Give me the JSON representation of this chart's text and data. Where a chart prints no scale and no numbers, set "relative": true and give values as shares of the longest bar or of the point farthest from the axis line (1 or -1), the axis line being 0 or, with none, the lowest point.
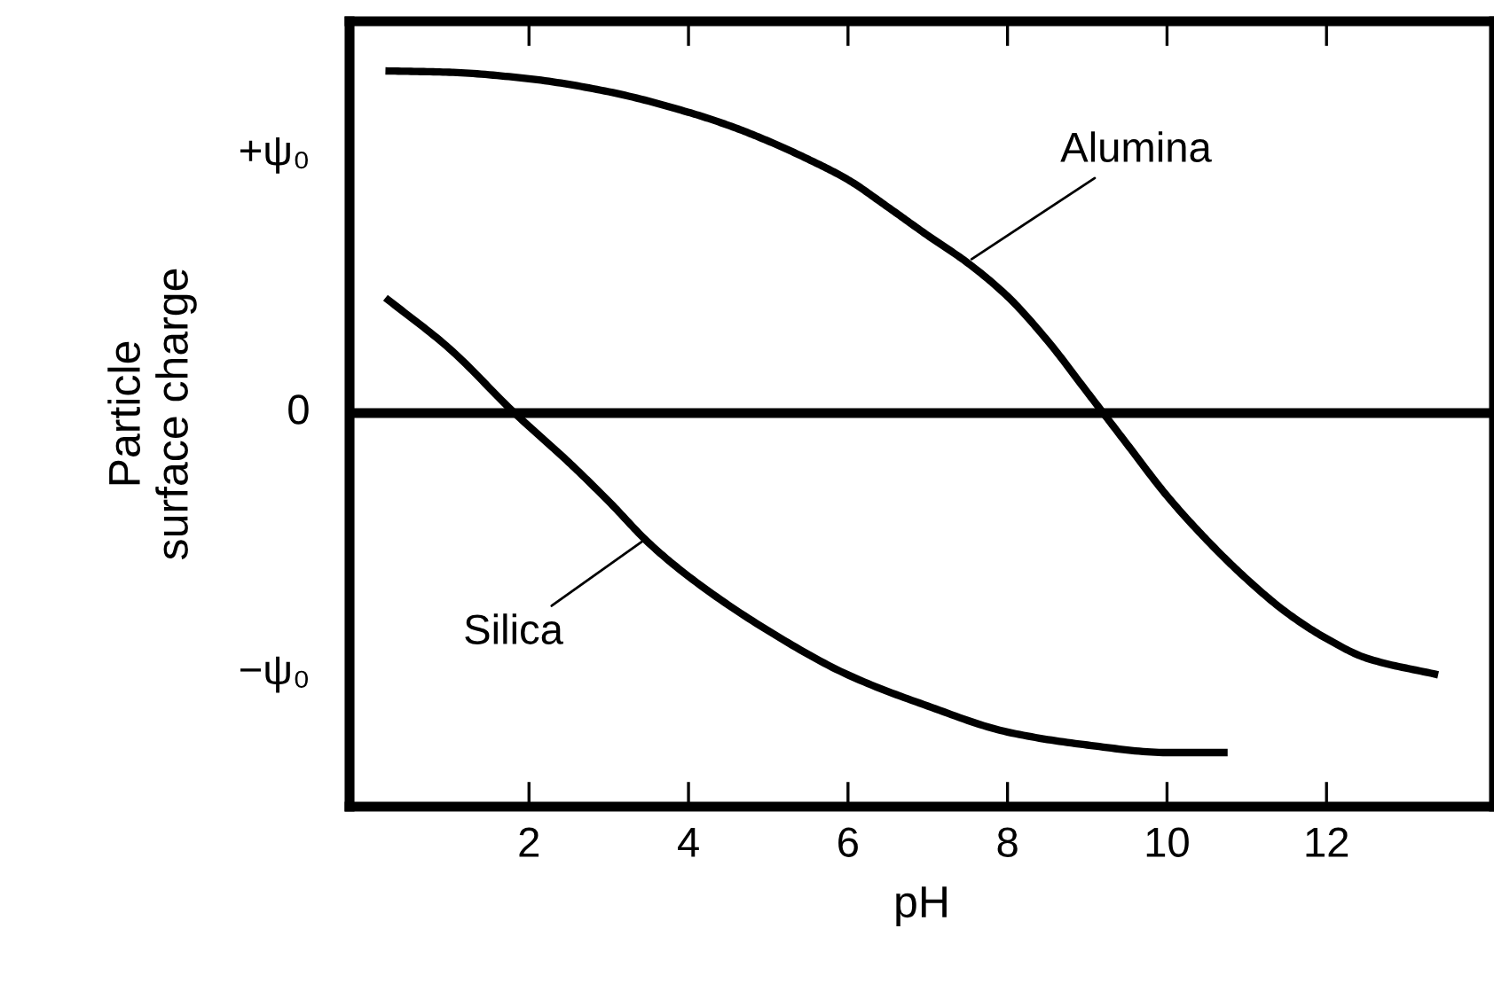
{
  "chart_data": {
    "type": "line",
    "relative": true,
    "xlabel": "pH",
    "ylabel": "Particle\nsurface charge",
    "xlim": [
      -0.25,
      14.1
    ],
    "xticks": [
      2,
      4,
      6,
      8,
      10,
      12
    ],
    "grid": false,
    "marker": "none",
    "line_style": "solid",
    "ref_lines": [
      {
        "axis": "y",
        "value": 0,
        "label": "0",
        "color": "#000000"
      }
    ],
    "series": [
      {
        "color": "#000000",
        "x": [
          0.2,
          1,
          2,
          3,
          4,
          4.5,
          5,
          5.5,
          6,
          6.5,
          7,
          7.5,
          8,
          8.5,
          9,
          9.5,
          10,
          10.5,
          11,
          11.5,
          12,
          12.5,
          13.4
        ],
        "values": [
          1.0,
          0.996,
          0.977,
          0.939,
          0.879,
          0.841,
          0.795,
          0.742,
          0.682,
          0.602,
          0.519,
          0.439,
          0.341,
          0.212,
          0.061,
          -0.091,
          -0.242,
          -0.371,
          -0.485,
          -0.583,
          -0.659,
          -0.716,
          -0.765
        ]
      },
      {
        "color": "#000000",
        "x": [
          0.2,
          1,
          1.82,
          2.5,
          3,
          3.5,
          4,
          5,
          6,
          7,
          8,
          9,
          10,
          10.76
        ],
        "values": [
          0.337,
          0.189,
          0.0,
          -0.144,
          -0.258,
          -0.379,
          -0.477,
          -0.636,
          -0.765,
          -0.856,
          -0.932,
          -0.97,
          -0.992,
          -0.992
        ]
      }
    ],
    "annotations": [
      {
        "text": "Alumina",
        "x": 7.55,
        "y": 0.45
      },
      {
        "text": "Silica",
        "x": 3.45,
        "y": -0.37
      },
      "+ψ₀",
      "−ψ₀"
    ]
  }
}
